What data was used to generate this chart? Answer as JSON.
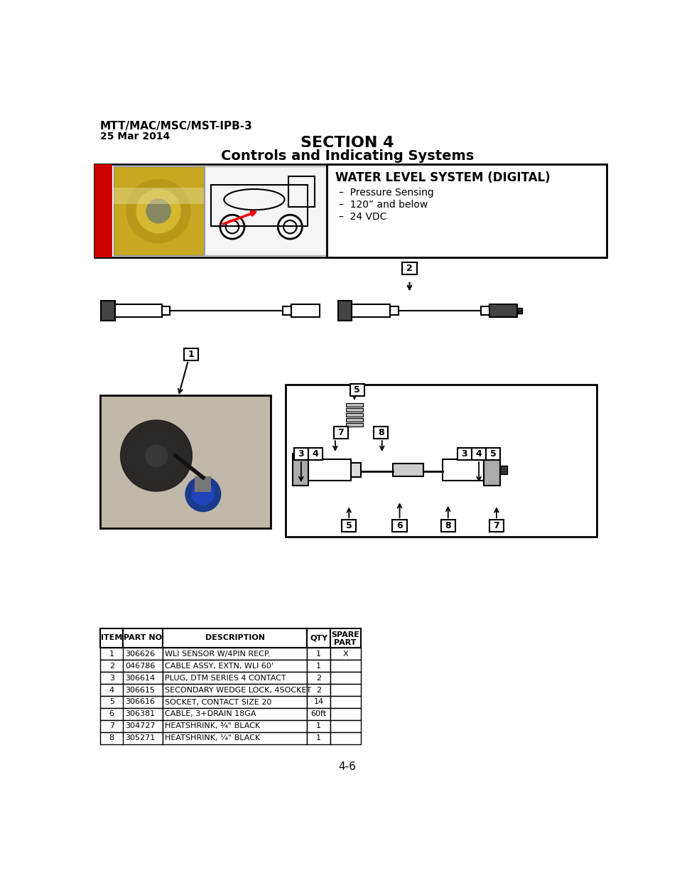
{
  "page_title_line1": "MTT/MAC/MSC/MST-IPB-3",
  "page_title_line2": "25 Mar 2014",
  "section_title": "SECTION 4",
  "section_subtitle": "Controls and Indicating Systems",
  "system_title": "WATER LEVEL SYSTEM (DIGITAL)",
  "system_bullets": [
    "Pressure Sensing",
    "120” and below",
    "24 VDC"
  ],
  "table_headers": [
    "ITEM",
    "PART NO",
    "DESCRIPTION",
    "QTY",
    "SPARE\nPART"
  ],
  "table_rows": [
    [
      "1",
      "306626",
      "WLI SENSOR W/4PIN RECP.",
      "1",
      "X"
    ],
    [
      "2",
      "046786",
      "CABLE ASSY, EXTN, WLI 60'",
      "1",
      ""
    ],
    [
      "3",
      "306614",
      "PLUG, DTM SERIES 4 CONTACT",
      "2",
      ""
    ],
    [
      "4",
      "306615",
      "SECONDARY WEDGE LOCK, 4SOCKET",
      "2",
      ""
    ],
    [
      "5",
      "306616",
      "SOCKET, CONTACT SIZE 20",
      "14",
      ""
    ],
    [
      "6",
      "306381",
      "CABLE, 3+DRAIN 18GA",
      "60ft",
      ""
    ],
    [
      "7",
      "304727",
      "HEATSHRINK, ¾\" BLACK",
      "1",
      ""
    ],
    [
      "8",
      "305271",
      "HEATSHRINK, ¼\" BLACK",
      "1",
      ""
    ]
  ],
  "page_number": "4-6",
  "bg_color": "#ffffff"
}
